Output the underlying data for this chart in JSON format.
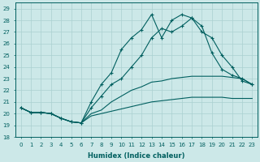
{
  "xlabel": "Humidex (Indice chaleur)",
  "xlim": [
    -0.5,
    23.5
  ],
  "ylim": [
    18,
    29.5
  ],
  "yticks": [
    18,
    19,
    20,
    21,
    22,
    23,
    24,
    25,
    26,
    27,
    28,
    29
  ],
  "xticks": [
    0,
    1,
    2,
    3,
    4,
    5,
    6,
    7,
    8,
    9,
    10,
    11,
    12,
    13,
    14,
    15,
    16,
    17,
    18,
    19,
    20,
    21,
    22,
    23
  ],
  "background_color": "#cce8e8",
  "grid_color": "#aad0d0",
  "line_color": "#005f5f",
  "series": {
    "main": [
      20.5,
      20.1,
      20.1,
      20.0,
      19.6,
      19.3,
      19.2,
      20.5,
      21.5,
      22.5,
      23.0,
      24.0,
      25.0,
      26.5,
      27.3,
      27.0,
      27.5,
      28.2,
      27.0,
      26.5,
      25.0,
      24.0,
      22.8,
      22.5
    ],
    "line_spike": [
      20.5,
      20.1,
      20.1,
      20.0,
      19.6,
      19.3,
      19.2,
      21.0,
      22.5,
      23.5,
      25.5,
      26.5,
      27.2,
      28.5,
      26.5,
      28.0,
      28.5,
      28.2,
      27.5,
      25.2,
      23.8,
      23.3,
      23.0,
      22.5
    ],
    "line2": [
      20.5,
      20.1,
      20.1,
      20.0,
      19.6,
      19.3,
      19.2,
      20.0,
      20.3,
      21.0,
      21.5,
      22.0,
      22.3,
      22.7,
      22.8,
      23.0,
      23.1,
      23.2,
      23.2,
      23.2,
      23.2,
      23.1,
      23.0,
      22.5
    ],
    "line3": [
      20.5,
      20.1,
      20.1,
      20.0,
      19.6,
      19.3,
      19.2,
      19.8,
      20.0,
      20.2,
      20.4,
      20.6,
      20.8,
      21.0,
      21.1,
      21.2,
      21.3,
      21.4,
      21.4,
      21.4,
      21.4,
      21.3,
      21.3,
      21.3
    ]
  }
}
